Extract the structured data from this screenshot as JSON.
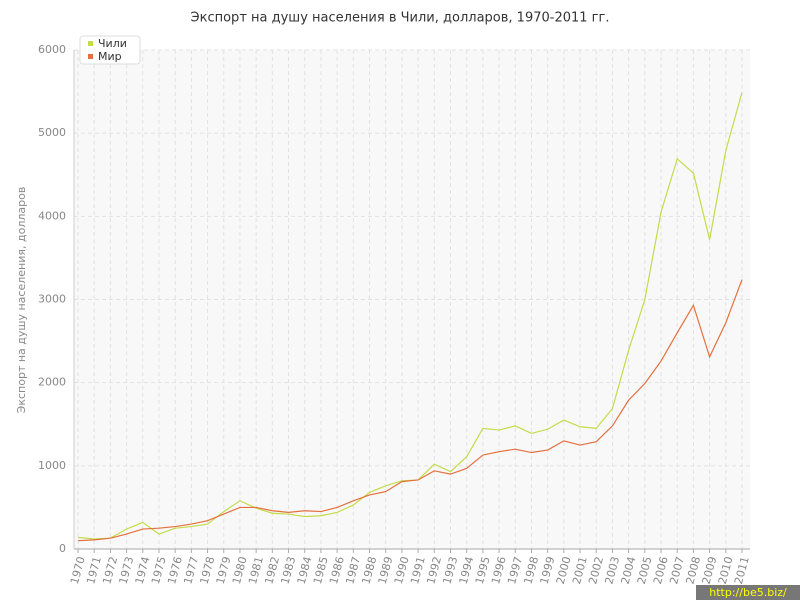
{
  "chart_data": {
    "type": "line",
    "title": "Экспорт на душу населения в Чили, долларов, 1970-2011 гг.",
    "y_label": "Экспорт на душу населения, долларов",
    "watermark": "http://be5.biz/",
    "categories": [
      "1970",
      "1971",
      "1972",
      "1973",
      "1974",
      "1975",
      "1976",
      "1977",
      "1978",
      "1979",
      "1980",
      "1981",
      "1982",
      "1983",
      "1984",
      "1985",
      "1986",
      "1987",
      "1988",
      "1989",
      "1990",
      "1991",
      "1992",
      "1993",
      "1994",
      "1995",
      "1996",
      "1997",
      "1998",
      "1999",
      "2000",
      "2001",
      "2002",
      "2003",
      "2004",
      "2005",
      "2006",
      "2007",
      "2008",
      "2009",
      "2010",
      "2011"
    ],
    "series": [
      {
        "name": "Чили",
        "color": "#c3dc4a",
        "values": [
          140,
          120,
          130,
          240,
          320,
          180,
          250,
          270,
          300,
          450,
          580,
          490,
          430,
          420,
          390,
          400,
          440,
          530,
          680,
          760,
          820,
          830,
          1020,
          930,
          1110,
          1450,
          1430,
          1480,
          1390,
          1440,
          1550,
          1470,
          1450,
          1690,
          2390,
          3000,
          4050,
          4690,
          4520,
          3720,
          4790,
          5490
        ]
      },
      {
        "name": "Мир",
        "color": "#e4703e",
        "values": [
          100,
          110,
          130,
          180,
          240,
          250,
          270,
          300,
          340,
          420,
          500,
          500,
          460,
          440,
          460,
          450,
          500,
          580,
          650,
          690,
          810,
          830,
          940,
          900,
          970,
          1130,
          1170,
          1200,
          1160,
          1190,
          1300,
          1250,
          1290,
          1480,
          1790,
          1990,
          2260,
          2600,
          2930,
          2310,
          2720,
          3240
        ]
      }
    ],
    "ylim": [
      0,
      6000
    ],
    "yticks": [
      0,
      1000,
      2000,
      3000,
      4000,
      5000,
      6000
    ],
    "grid": true,
    "legend": "top-left"
  }
}
